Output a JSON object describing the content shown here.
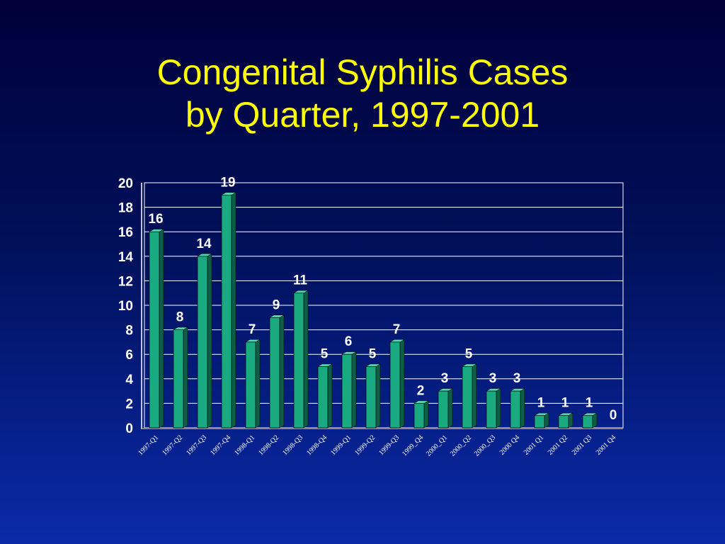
{
  "slide": {
    "title_line1": "Congenital Syphilis Cases",
    "title_line2": "by Quarter, 1997-2001"
  },
  "colors": {
    "title": "#ffff00",
    "bar_front": "#1aaa82",
    "bar_side": "#0b5e48",
    "bar_top": "#55d6b0",
    "grid": "#ffffff",
    "text": "#ffffff"
  },
  "chart_data": {
    "type": "bar",
    "title": "Congenital Syphilis Cases by Quarter, 1997-2001",
    "xlabel": "",
    "ylabel": "",
    "ylim": [
      0,
      20
    ],
    "yticks": [
      "0",
      "2",
      "4",
      "6",
      "8",
      "10",
      "12",
      "14",
      "16",
      "18",
      "20"
    ],
    "grid": true,
    "categories": [
      "1997-Q1",
      "1997-Q2",
      "1997-Q3",
      "1997-Q4",
      "1998-Q1",
      "1998-Q2",
      "1998-Q3",
      "1998-Q4",
      "1999-Q1",
      "1999-Q2",
      "1999-Q3",
      "1999_Q4",
      "2000_Q1",
      "2000_Q2",
      "2000_Q3",
      "2000 Q4",
      "2001 Q1",
      "2001 Q2",
      "2001 Q3",
      "2001 Q4"
    ],
    "values": [
      16,
      8,
      14,
      19,
      7,
      9,
      11,
      5,
      6,
      5,
      7,
      2,
      3,
      5,
      3,
      3,
      1,
      1,
      1,
      0
    ],
    "data_labels": [
      "16",
      "8",
      "14",
      "19",
      "7",
      "9",
      "11",
      "5",
      "6",
      "5",
      "7",
      "2",
      "3",
      "5",
      "3",
      "3",
      "1",
      "1",
      "1",
      "0"
    ]
  }
}
